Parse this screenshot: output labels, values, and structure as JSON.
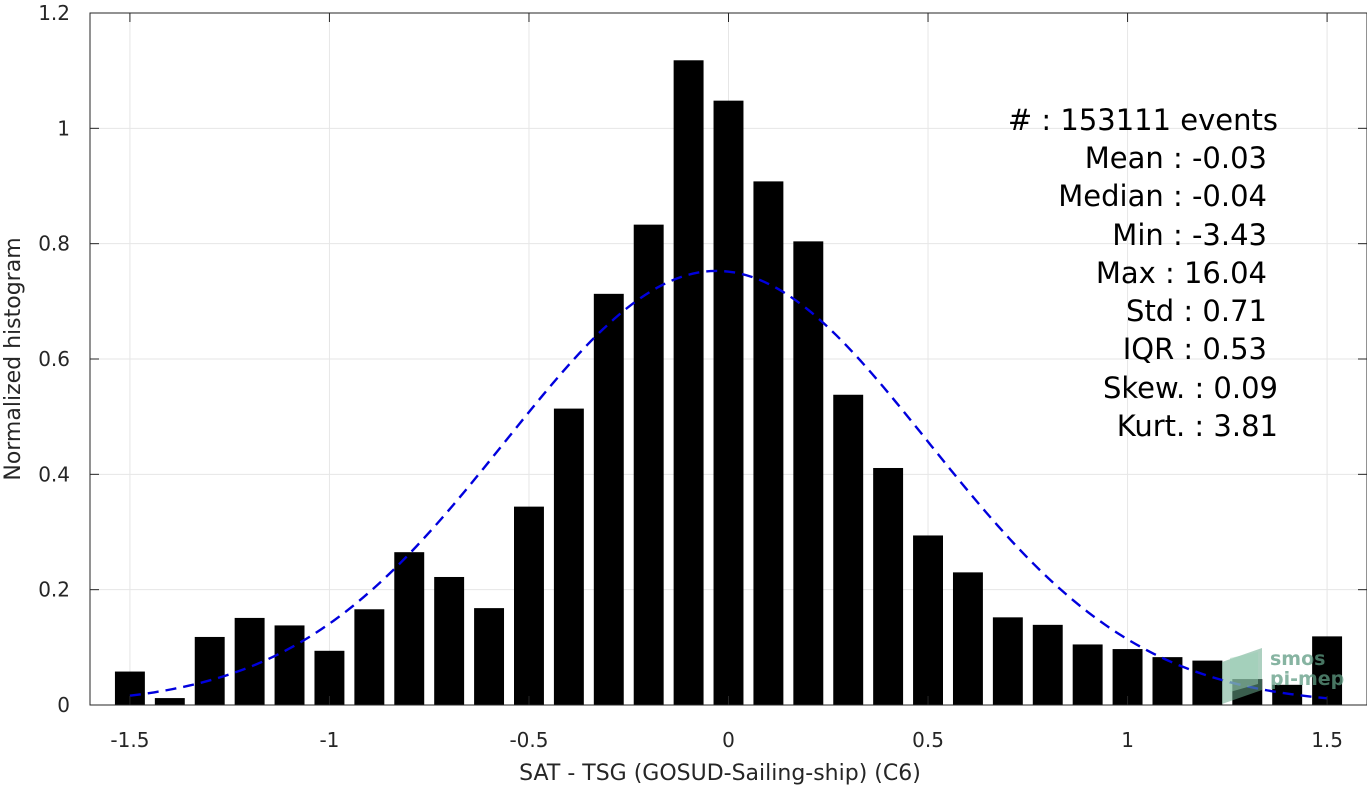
{
  "chart_data": {
    "type": "bar",
    "xlabel": "SAT - TSG (GOSUD-Sailing-ship) (C6)",
    "ylabel": "Normalized histogram",
    "xlim": [
      -1.6,
      1.6
    ],
    "ylim": [
      0,
      1.2
    ],
    "xticks": [
      -1.5,
      -1,
      -0.5,
      0,
      0.5,
      1,
      1.5
    ],
    "xtick_labels": [
      "-1.5",
      "-1",
      "-0.5",
      "0",
      "0.5",
      "1",
      "1.5"
    ],
    "yticks": [
      0,
      0.2,
      0.4,
      0.6,
      0.8,
      1,
      1.2
    ],
    "ytick_labels": [
      "0",
      "0.2",
      "0.4",
      "0.6",
      "0.8",
      "1",
      "1.2"
    ],
    "grid": true,
    "bar_width": 0.075,
    "x": [
      -1.5,
      -1.4,
      -1.3,
      -1.2,
      -1.1,
      -1.0,
      -0.9,
      -0.8,
      -0.7,
      -0.6,
      -0.5,
      -0.4,
      -0.3,
      -0.2,
      -0.1,
      0.0,
      0.1,
      0.2,
      0.3,
      0.4,
      0.5,
      0.6,
      0.7,
      0.8,
      0.9,
      1.0,
      1.1,
      1.2,
      1.3,
      1.4,
      1.5
    ],
    "values": [
      0.058,
      0.012,
      0.118,
      0.151,
      0.138,
      0.094,
      0.166,
      0.265,
      0.222,
      0.168,
      0.344,
      0.514,
      0.713,
      0.833,
      1.118,
      1.048,
      0.908,
      0.804,
      0.538,
      0.411,
      0.294,
      0.23,
      0.152,
      0.139,
      0.105,
      0.097,
      0.083,
      0.077,
      0.045,
      0.035,
      0.119
    ],
    "series": [
      {
        "type": "line",
        "style": "dashed",
        "color": "#0000dd",
        "distribution": "normal",
        "mean": -0.03,
        "std": 0.53,
        "x_range": [
          -1.5,
          1.5
        ]
      }
    ],
    "colors": {
      "bars": "#000000",
      "fit": "#0000dd",
      "grid": "#e6e6e6",
      "axes": "#262626"
    }
  },
  "stats": {
    "events": "#  : 153111 events",
    "mean": "Mean : -0.03",
    "median": "Median : -0.04",
    "min": "Min : -3.43",
    "max": "Max : 16.04",
    "std": "Std : 0.71",
    "iqr": "IQR : 0.53",
    "skew": "Skew. : 0.09",
    "kurt": "Kurt. : 3.81"
  },
  "logo": {
    "line1": "smos",
    "line2": "pi-mep"
  }
}
